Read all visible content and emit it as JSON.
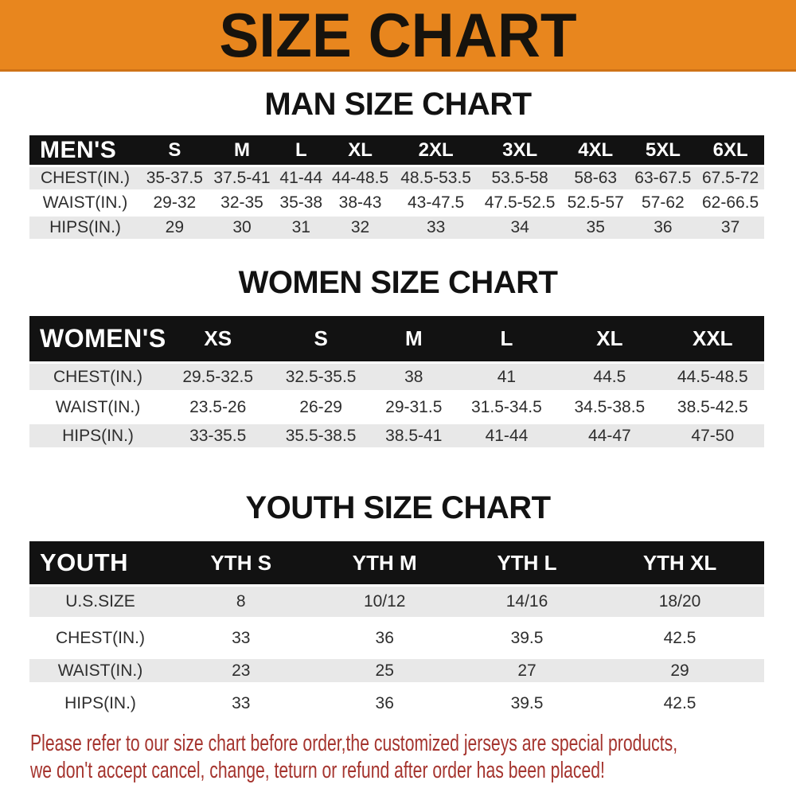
{
  "banner": {
    "title": "SIZE CHART"
  },
  "colors": {
    "banner_orange": "#E8861E",
    "header_black": "#121212",
    "row_gray": "#E8E8E8",
    "disclaimer_red": "#A5342E"
  },
  "sections": {
    "men": {
      "heading": "MAN SIZE CHART",
      "corner_label": "MEN'S",
      "columns": [
        "S",
        "M",
        "L",
        "XL",
        "2XL",
        "3XL",
        "4XL",
        "5XL",
        "6XL"
      ],
      "rows": [
        {
          "label": "CHEST(IN.)",
          "values": [
            "35-37.5",
            "37.5-41",
            "41-44",
            "44-48.5",
            "48.5-53.5",
            "53.5-58",
            "58-63",
            "63-67.5",
            "67.5-72"
          ]
        },
        {
          "label": "WAIST(IN.)",
          "values": [
            "29-32",
            "32-35",
            "35-38",
            "38-43",
            "43-47.5",
            "47.5-52.5",
            "52.5-57",
            "57-62",
            "62-66.5"
          ]
        },
        {
          "label": "HIPS(IN.)",
          "values": [
            "29",
            "30",
            "31",
            "32",
            "33",
            "34",
            "35",
            "36",
            "37"
          ]
        }
      ]
    },
    "women": {
      "heading": "WOMEN SIZE CHART",
      "corner_label": "WOMEN'S",
      "columns": [
        "XS",
        "S",
        "M",
        "L",
        "XL",
        "XXL"
      ],
      "rows": [
        {
          "label": "CHEST(IN.)",
          "values": [
            "29.5-32.5",
            "32.5-35.5",
            "38",
            "41",
            "44.5",
            "44.5-48.5"
          ]
        },
        {
          "label": "WAIST(IN.)",
          "values": [
            "23.5-26",
            "26-29",
            "29-31.5",
            "31.5-34.5",
            "34.5-38.5",
            "38.5-42.5"
          ]
        },
        {
          "label": "HIPS(IN.)",
          "values": [
            "33-35.5",
            "35.5-38.5",
            "38.5-41",
            "41-44",
            "44-47",
            "47-50"
          ]
        }
      ]
    },
    "youth": {
      "heading": "YOUTH SIZE CHART",
      "corner_label": "YOUTH",
      "columns": [
        "YTH S",
        "YTH M",
        "YTH L",
        "YTH XL"
      ],
      "rows": [
        {
          "label": "U.S.SIZE",
          "values": [
            "8",
            "10/12",
            "14/16",
            "18/20"
          ]
        },
        {
          "label": "CHEST(IN.)",
          "values": [
            "33",
            "36",
            "39.5",
            "42.5"
          ]
        },
        {
          "label": "WAIST(IN.)",
          "values": [
            "23",
            "25",
            "27",
            "29"
          ]
        },
        {
          "label": "HIPS(IN.)",
          "values": [
            "33",
            "36",
            "39.5",
            "42.5"
          ]
        }
      ]
    }
  },
  "disclaimer": {
    "lines": [
      "Please refer to our size chart before order,the customized jerseys are special products,",
      "we don't accept cancel, change, teturn or refund after order has been placed!"
    ]
  }
}
